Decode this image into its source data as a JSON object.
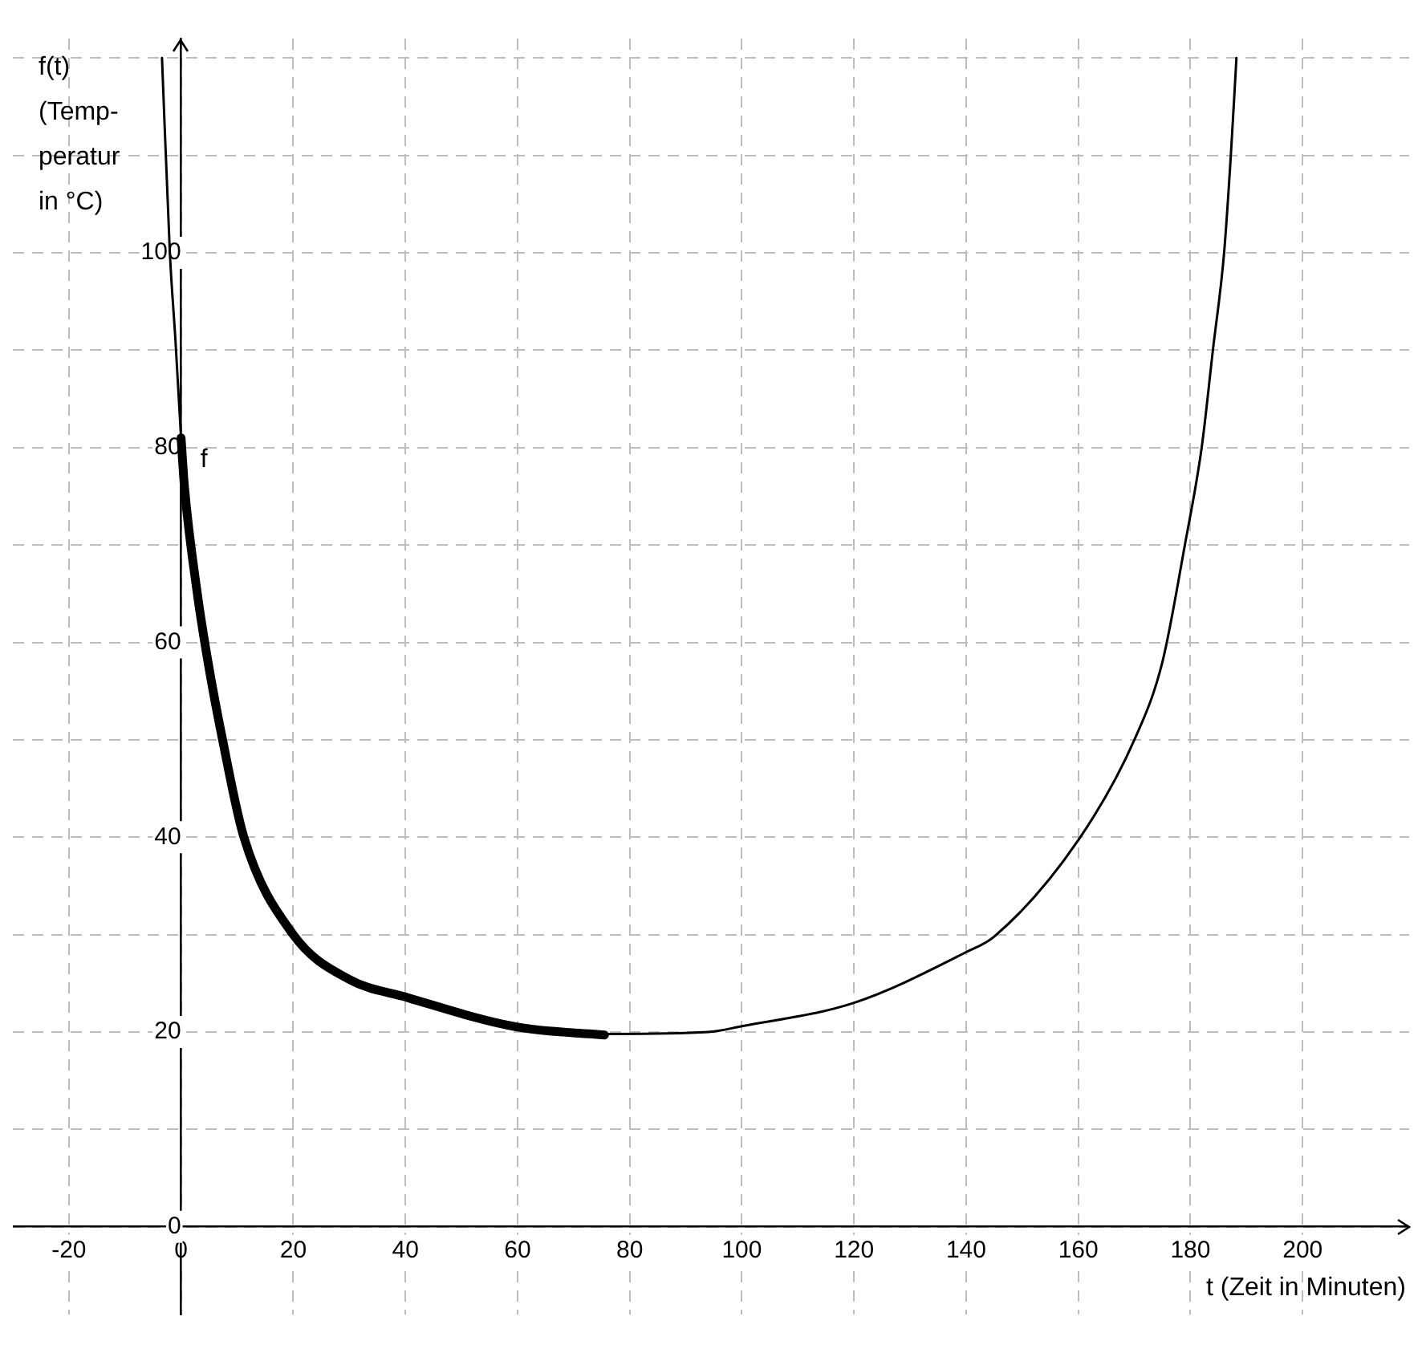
{
  "chart_data": {
    "type": "line",
    "xlabel": "t (Zeit in Minuten)",
    "ylabel": "f(t)\n(Temp-\nperatur\nin °C)",
    "xlim": [
      -30,
      219
    ],
    "ylim": [
      -9,
      122
    ],
    "xticks": [
      -20,
      {
        "value": 0,
        "label": "0"
      },
      20,
      40,
      60,
      80,
      100,
      120,
      140,
      160,
      180,
      200
    ],
    "yticks": [
      {
        "value": 0,
        "label": "0"
      },
      {
        "value": 10,
        "label": null
      },
      20,
      {
        "value": 30,
        "label": null
      },
      40,
      {
        "value": 50,
        "label": null
      },
      60,
      {
        "value": 70,
        "label": null
      },
      80,
      {
        "value": 90,
        "label": null
      },
      100,
      {
        "value": 110,
        "label": null
      },
      {
        "value": 120,
        "label": null
      }
    ],
    "grid": true,
    "legend": false,
    "marker": "none",
    "line_style": "solid",
    "annotations": [
      "f"
    ],
    "series": [
      {
        "color": "#000000",
        "x": [
          -3.4,
          -2,
          -1,
          0,
          0.6,
          2.9,
          4.8,
          7.4,
          11.2,
          20,
          30,
          40,
          60,
          76,
          94,
          100,
          120,
          140,
          145,
          160,
          170,
          175,
          179,
          182,
          184,
          186,
          187.2,
          188.2
        ],
        "values": [
          120,
          100,
          91,
          81,
          76,
          65,
          58,
          50,
          40,
          30,
          25.4,
          23.6,
          20.5,
          19.8,
          20,
          20.6,
          23,
          28.2,
          29.8,
          39.7,
          50,
          58,
          70,
          80,
          90,
          100,
          110,
          120
        ]
      },
      {
        "color": "#000000",
        "x": [
          0,
          0.6,
          2.9,
          4.8,
          7.4,
          11.2,
          20,
          30,
          40,
          60,
          75.5
        ],
        "values": [
          81,
          76,
          65,
          58,
          50,
          40,
          30,
          25.4,
          23.6,
          20.5,
          19.7
        ]
      }
    ]
  }
}
